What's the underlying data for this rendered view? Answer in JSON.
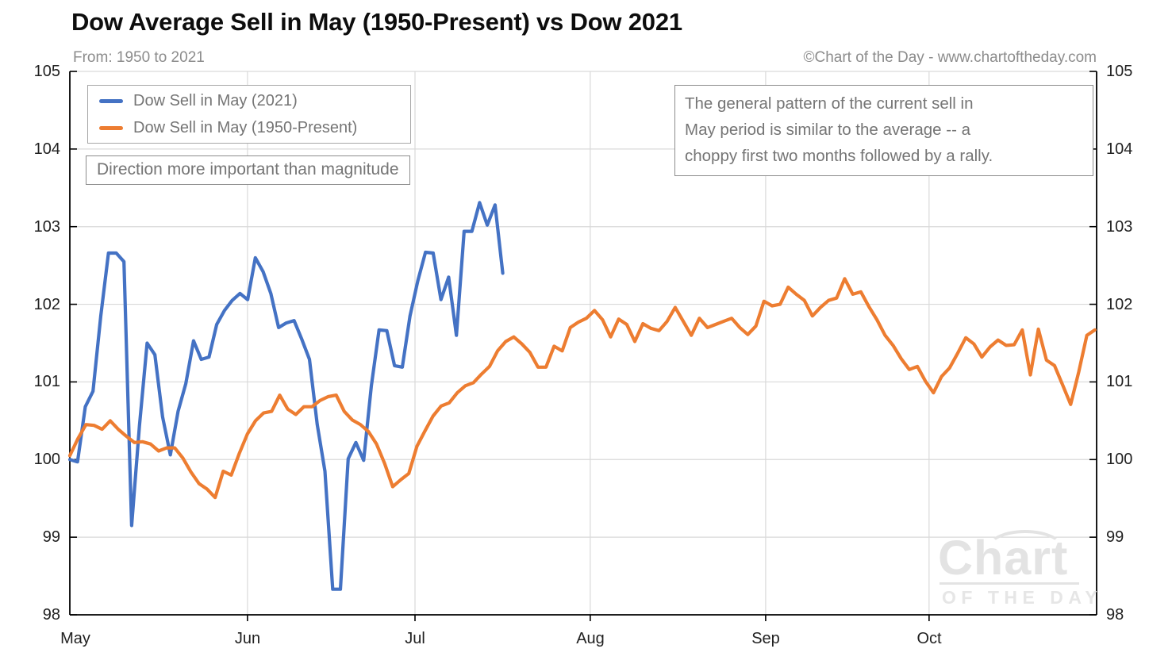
{
  "header": {
    "title": "Dow Average Sell in May (1950-Present) vs Dow 2021",
    "subtitle": "From: 1950 to 2021",
    "copyright": "©Chart of the Day - www.chartoftheday.com"
  },
  "legend": {
    "items": [
      {
        "label": "Dow Sell in May (2021)",
        "color": "#4472C4"
      },
      {
        "label": "Dow Sell in May (1950-Present)",
        "color": "#ED7D31"
      }
    ]
  },
  "note": "Direction more important than magnitude",
  "annotation": {
    "lines": [
      "The general pattern of the current sell in",
      "May period is similar to the average -- a",
      "choppy first two months followed by a rally."
    ]
  },
  "watermark": {
    "line1": "Chart",
    "line2": "OF THE DAY"
  },
  "colors": {
    "blue": "#4472C4",
    "orange": "#ED7D31",
    "gridline": "#D9D9D9",
    "axis": "#000000",
    "muted_text": "#757575"
  },
  "chart_data": {
    "type": "line",
    "title": "Dow Average Sell in May (1950-Present) vs Dow 2021",
    "x_axis": {
      "unit": "months_from_May_start",
      "labels": [
        "May",
        "Jun",
        "Jul",
        "Aug",
        "Sep",
        "Oct"
      ],
      "tick_positions": [
        0.032,
        1.038,
        2.017,
        3.041,
        4.066,
        5.021
      ],
      "range": [
        0,
        6.0
      ],
      "gridlines_at": [
        1.038,
        2.017,
        3.041,
        4.066,
        5.021
      ]
    },
    "y_axis": {
      "range": [
        98,
        105
      ],
      "ticks": [
        98,
        99,
        100,
        101,
        102,
        103,
        104,
        105
      ],
      "label_sides": "both"
    },
    "grid": true,
    "legend_position": "top-left-inside",
    "series": [
      {
        "name": "Dow Sell in May (2021)",
        "color": "#4472C4",
        "x_start_months": 0,
        "x_end_months": 2.53,
        "values": [
          100.0,
          99.97,
          100.68,
          100.88,
          101.85,
          102.66,
          102.66,
          102.55,
          99.15,
          100.43,
          101.5,
          101.35,
          100.55,
          100.06,
          100.62,
          100.98,
          101.53,
          101.29,
          101.32,
          101.74,
          101.92,
          102.05,
          102.14,
          102.06,
          102.6,
          102.42,
          102.14,
          101.7,
          101.76,
          101.79,
          101.55,
          101.29,
          100.45,
          99.85,
          98.33,
          98.33,
          100.01,
          100.22,
          99.99,
          100.95,
          101.67,
          101.66,
          101.21,
          101.19,
          101.85,
          102.3,
          102.67,
          102.66,
          102.06,
          102.35,
          101.6,
          102.94,
          102.94,
          103.31,
          103.02,
          103.28,
          102.4
        ]
      },
      {
        "name": "Dow Sell in May (1950-Present)",
        "color": "#ED7D31",
        "x_start_months": 0,
        "x_end_months": 5.99,
        "values": [
          100.05,
          100.27,
          100.45,
          100.44,
          100.39,
          100.5,
          100.39,
          100.3,
          100.22,
          100.23,
          100.2,
          100.11,
          100.15,
          100.15,
          100.02,
          99.84,
          99.69,
          99.62,
          99.51,
          99.85,
          99.8,
          100.08,
          100.33,
          100.5,
          100.6,
          100.62,
          100.83,
          100.65,
          100.58,
          100.68,
          100.68,
          100.76,
          100.81,
          100.83,
          100.62,
          100.51,
          100.45,
          100.36,
          100.2,
          99.95,
          99.65,
          99.74,
          99.82,
          100.17,
          100.37,
          100.56,
          100.69,
          100.73,
          100.86,
          100.95,
          100.99,
          101.1,
          101.2,
          101.4,
          101.52,
          101.58,
          101.49,
          101.38,
          101.19,
          101.19,
          101.46,
          101.4,
          101.7,
          101.77,
          101.82,
          101.92,
          101.8,
          101.58,
          101.81,
          101.74,
          101.52,
          101.75,
          101.69,
          101.66,
          101.78,
          101.96,
          101.78,
          101.6,
          101.82,
          101.7,
          101.74,
          101.78,
          101.82,
          101.7,
          101.61,
          101.72,
          102.04,
          101.98,
          102.0,
          102.22,
          102.13,
          102.05,
          101.85,
          101.96,
          102.05,
          102.08,
          102.33,
          102.13,
          102.16,
          101.97,
          101.8,
          101.6,
          101.47,
          101.3,
          101.16,
          101.2,
          101.01,
          100.86,
          101.07,
          101.18,
          101.37,
          101.57,
          101.49,
          101.32,
          101.45,
          101.54,
          101.47,
          101.48,
          101.67,
          101.09,
          101.68,
          101.28,
          101.21,
          100.96,
          100.71,
          101.13,
          101.6,
          101.67
        ]
      }
    ]
  }
}
